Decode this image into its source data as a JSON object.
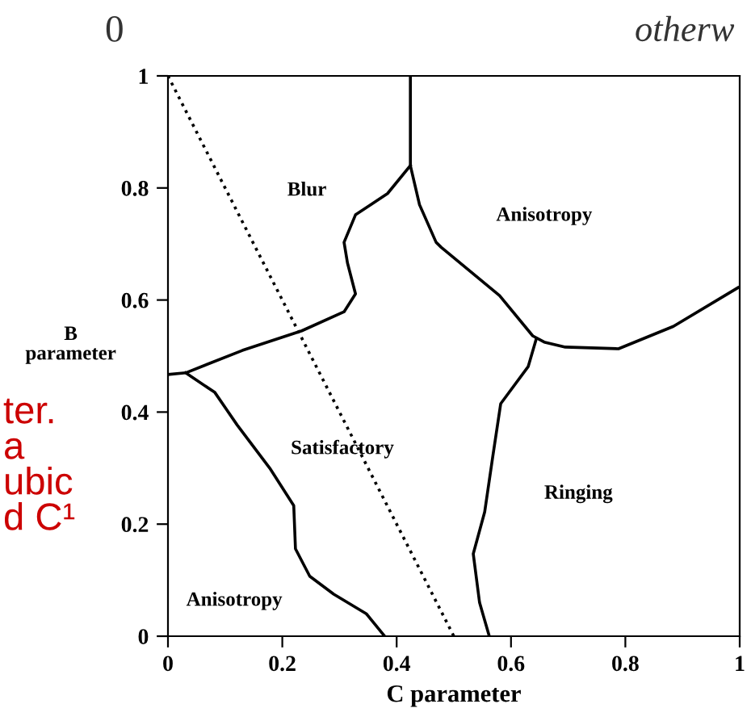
{
  "chart_data": {
    "type": "line",
    "xlabel": "C parameter",
    "ylabel": "B\nparameter",
    "xlim": [
      0,
      1
    ],
    "ylim": [
      0,
      1
    ],
    "xticks": [
      0,
      0.2,
      0.4,
      0.6,
      0.8,
      1
    ],
    "yticks": [
      0,
      0.2,
      0.4,
      0.6,
      0.8,
      1
    ],
    "grid": false,
    "legend": false,
    "series": [
      {
        "color": "#000000",
        "line_style": "dotted",
        "x": [
          0,
          0.5
        ],
        "values": [
          1,
          0
        ]
      },
      {
        "color": "#000000",
        "line_style": "solid",
        "x": [
          0,
          0.031,
          0.13,
          0.234,
          0.308,
          0.328,
          0.314,
          0.308,
          0.328,
          0.384,
          0.424
        ],
        "values": [
          0.467,
          0.47,
          0.51,
          0.545,
          0.579,
          0.611,
          0.666,
          0.703,
          0.752,
          0.79,
          0.84
        ]
      },
      {
        "color": "#000000",
        "line_style": "solid",
        "x": [
          0.424,
          0.424,
          0.44,
          0.469,
          0.478,
          0.58,
          0.638,
          0.658,
          0.695,
          0.788,
          0.884,
          0.997
        ],
        "values": [
          1,
          0.84,
          0.77,
          0.703,
          0.694,
          0.608,
          0.536,
          0.525,
          0.516,
          0.513,
          0.553,
          0.622
        ]
      },
      {
        "color": "#000000",
        "line_style": "solid",
        "x": [
          0.031,
          0.082,
          0.121,
          0.178,
          0.22,
          0.223,
          0.248,
          0.29,
          0.347,
          0.379
        ],
        "values": [
          0.47,
          0.435,
          0.377,
          0.3,
          0.233,
          0.156,
          0.107,
          0.075,
          0.04,
          0
        ]
      },
      {
        "color": "#000000",
        "line_style": "solid",
        "x": [
          0.644,
          0.63,
          0.582,
          0.568,
          0.554,
          0.534,
          0.545,
          0.562
        ],
        "values": [
          0.53,
          0.481,
          0.415,
          0.32,
          0.222,
          0.147,
          0.06,
          0
        ]
      }
    ],
    "annotations": [
      "Blur",
      "Anisotropy",
      "Satisfactory",
      "Ringing",
      "Anisotropy",
      "0",
      "otherw",
      "ter.\na\nubic\nd C¹"
    ]
  }
}
